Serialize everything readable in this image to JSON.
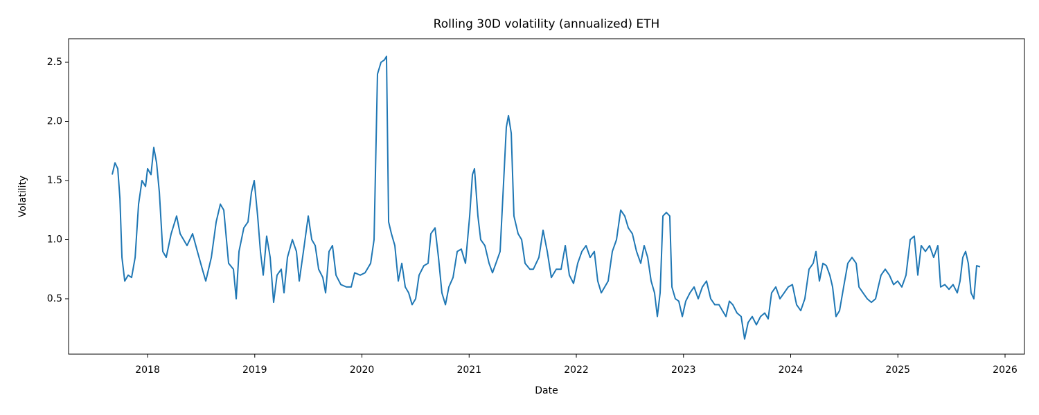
{
  "chart_data": {
    "type": "line",
    "title": "Rolling 30D volatility (annualized) ETH",
    "x_label": "Date",
    "y_label": "Volatility",
    "x": [
      2017.67,
      2017.696,
      2017.722,
      2017.742,
      2017.761,
      2017.787,
      2017.819,
      2017.851,
      2017.884,
      2017.916,
      2017.948,
      2017.981,
      2018.0,
      2018.032,
      2018.058,
      2018.084,
      2018.11,
      2018.142,
      2018.174,
      2018.22,
      2018.271,
      2018.304,
      2018.336,
      2018.368,
      2018.42,
      2018.465,
      2018.511,
      2018.543,
      2018.595,
      2018.64,
      2018.679,
      2018.711,
      2018.756,
      2018.801,
      2018.827,
      2018.853,
      2018.898,
      2018.937,
      2018.969,
      2018.995,
      2019.027,
      2019.053,
      2019.079,
      2019.111,
      2019.144,
      2019.176,
      2019.208,
      2019.247,
      2019.273,
      2019.305,
      2019.351,
      2019.389,
      2019.415,
      2019.454,
      2019.499,
      2019.532,
      2019.564,
      2019.596,
      2019.635,
      2019.661,
      2019.693,
      2019.725,
      2019.758,
      2019.803,
      2019.855,
      2019.9,
      2019.932,
      2019.984,
      2020.029,
      2020.081,
      2020.113,
      2020.145,
      2020.178,
      2020.21,
      2020.229,
      2020.249,
      2020.275,
      2020.307,
      2020.339,
      2020.372,
      2020.404,
      2020.436,
      2020.468,
      2020.501,
      2020.533,
      2020.578,
      2020.617,
      2020.643,
      2020.682,
      2020.714,
      2020.746,
      2020.779,
      2020.811,
      2020.85,
      2020.889,
      2020.927,
      2020.966,
      2021.005,
      2021.031,
      2021.05,
      2021.082,
      2021.108,
      2021.147,
      2021.186,
      2021.218,
      2021.25,
      2021.289,
      2021.328,
      2021.347,
      2021.367,
      2021.393,
      2021.418,
      2021.457,
      2021.49,
      2021.522,
      2021.567,
      2021.599,
      2021.651,
      2021.69,
      2021.729,
      2021.767,
      2021.813,
      2021.858,
      2021.897,
      2021.935,
      2021.974,
      2022.013,
      2022.052,
      2022.091,
      2022.129,
      2022.168,
      2022.2,
      2022.233,
      2022.265,
      2022.297,
      2022.336,
      2022.375,
      2022.414,
      2022.452,
      2022.485,
      2022.523,
      2022.562,
      2022.601,
      2022.633,
      2022.666,
      2022.698,
      2022.73,
      2022.756,
      2022.782,
      2022.808,
      2022.84,
      2022.872,
      2022.892,
      2022.924,
      2022.956,
      2022.989,
      2023.021,
      2023.06,
      2023.099,
      2023.137,
      2023.176,
      2023.215,
      2023.254,
      2023.292,
      2023.331,
      2023.363,
      2023.396,
      2023.428,
      2023.46,
      2023.499,
      2023.538,
      2023.57,
      2023.603,
      2023.641,
      2023.68,
      2023.719,
      2023.758,
      2023.79,
      2023.822,
      2023.861,
      2023.9,
      2023.939,
      2023.977,
      2024.016,
      2024.055,
      2024.094,
      2024.132,
      2024.171,
      2024.21,
      2024.236,
      2024.268,
      2024.301,
      2024.333,
      2024.365,
      2024.391,
      2024.423,
      2024.456,
      2024.494,
      2024.533,
      2024.572,
      2024.611,
      2024.637,
      2024.675,
      2024.714,
      2024.753,
      2024.792,
      2024.817,
      2024.843,
      2024.882,
      2024.921,
      2024.96,
      2024.998,
      2025.037,
      2025.076,
      2025.115,
      2025.153,
      2025.186,
      2025.218,
      2025.257,
      2025.296,
      2025.334,
      2025.373,
      2025.399,
      2025.438,
      2025.477,
      2025.515,
      2025.554,
      2025.58,
      2025.606,
      2025.632,
      2025.657,
      2025.683,
      2025.709,
      2025.735,
      2025.767
    ],
    "series": [
      {
        "name": "ETH",
        "color": "#1f77b4",
        "values": [
          1.55,
          1.65,
          1.6,
          1.35,
          0.85,
          0.65,
          0.7,
          0.68,
          0.85,
          1.3,
          1.5,
          1.45,
          1.6,
          1.55,
          1.78,
          1.65,
          1.4,
          0.9,
          0.85,
          1.05,
          1.2,
          1.05,
          1.0,
          0.95,
          1.05,
          0.9,
          0.75,
          0.65,
          0.85,
          1.15,
          1.3,
          1.25,
          0.8,
          0.75,
          0.5,
          0.9,
          1.1,
          1.15,
          1.4,
          1.5,
          1.2,
          0.9,
          0.7,
          1.03,
          0.85,
          0.47,
          0.7,
          0.75,
          0.55,
          0.85,
          1.0,
          0.9,
          0.65,
          0.9,
          1.2,
          1.0,
          0.95,
          0.75,
          0.68,
          0.55,
          0.9,
          0.95,
          0.7,
          0.62,
          0.6,
          0.6,
          0.72,
          0.7,
          0.72,
          0.8,
          1.0,
          2.4,
          2.5,
          2.52,
          2.55,
          1.15,
          1.05,
          0.95,
          0.65,
          0.8,
          0.6,
          0.55,
          0.45,
          0.5,
          0.7,
          0.78,
          0.8,
          1.05,
          1.1,
          0.85,
          0.55,
          0.45,
          0.6,
          0.68,
          0.9,
          0.92,
          0.8,
          1.2,
          1.55,
          1.6,
          1.2,
          1.0,
          0.95,
          0.8,
          0.72,
          0.8,
          0.9,
          1.6,
          1.95,
          2.05,
          1.9,
          1.2,
          1.05,
          1.0,
          0.8,
          0.75,
          0.75,
          0.85,
          1.08,
          0.9,
          0.68,
          0.75,
          0.75,
          0.95,
          0.7,
          0.63,
          0.8,
          0.9,
          0.95,
          0.85,
          0.9,
          0.65,
          0.55,
          0.6,
          0.65,
          0.9,
          1.0,
          1.25,
          1.2,
          1.1,
          1.05,
          0.9,
          0.8,
          0.95,
          0.85,
          0.65,
          0.55,
          0.35,
          0.55,
          1.2,
          1.23,
          1.2,
          0.6,
          0.5,
          0.48,
          0.35,
          0.48,
          0.55,
          0.6,
          0.5,
          0.6,
          0.65,
          0.5,
          0.45,
          0.45,
          0.4,
          0.35,
          0.48,
          0.45,
          0.38,
          0.35,
          0.16,
          0.3,
          0.35,
          0.28,
          0.35,
          0.38,
          0.33,
          0.55,
          0.6,
          0.5,
          0.55,
          0.6,
          0.62,
          0.45,
          0.4,
          0.5,
          0.75,
          0.8,
          0.9,
          0.65,
          0.8,
          0.78,
          0.7,
          0.6,
          0.35,
          0.4,
          0.6,
          0.8,
          0.85,
          0.8,
          0.6,
          0.55,
          0.5,
          0.47,
          0.5,
          0.6,
          0.7,
          0.75,
          0.7,
          0.62,
          0.65,
          0.6,
          0.7,
          1.0,
          1.03,
          0.7,
          0.95,
          0.9,
          0.95,
          0.85,
          0.95,
          0.6,
          0.62,
          0.58,
          0.62,
          0.55,
          0.65,
          0.85,
          0.9,
          0.8,
          0.55,
          0.5,
          0.78,
          0.77
        ]
      }
    ],
    "xlim": [
      2017.263,
      2026.181
    ],
    "xticks": [
      2018,
      2019,
      2020,
      2021,
      2022,
      2023,
      2024,
      2025,
      2026
    ],
    "ylim": [
      0.032,
      2.699
    ],
    "yticks": [
      0.5,
      {
        "value": 1,
        "label": "1.0"
      },
      1.5,
      {
        "value": 2,
        "label": "2.0"
      },
      2.5
    ],
    "grid": false
  }
}
